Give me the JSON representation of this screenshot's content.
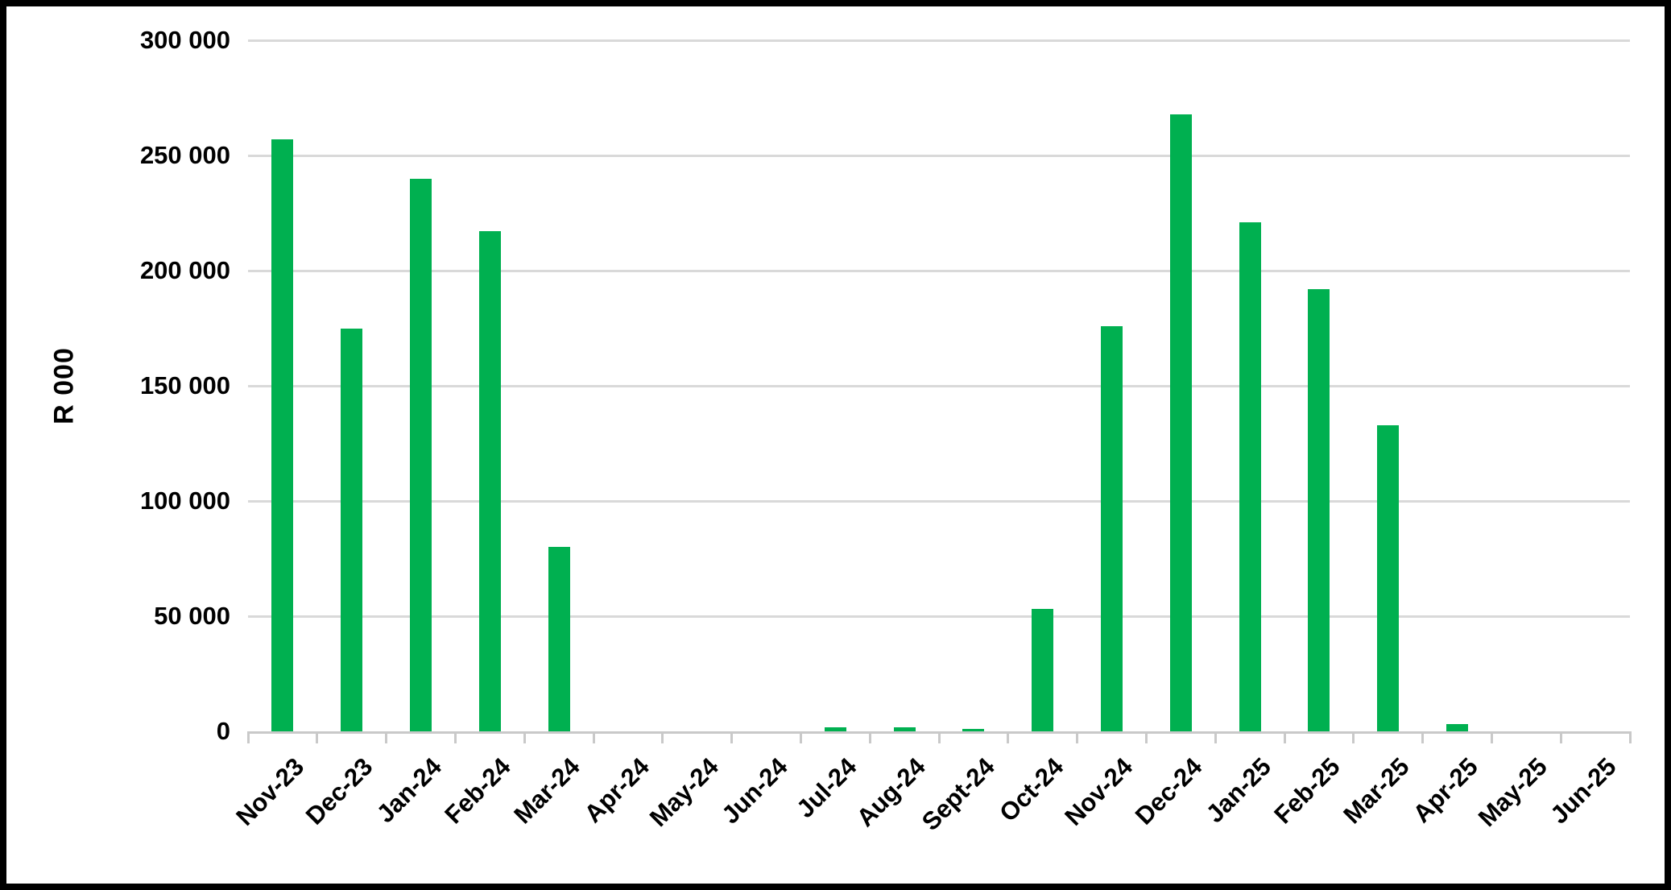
{
  "chart_data": {
    "type": "bar",
    "title": "",
    "xlabel": "",
    "ylabel": "R 000",
    "categories": [
      "Nov-23",
      "Dec-23",
      "Jan-24",
      "Feb-24",
      "Mar-24",
      "Apr-24",
      "May-24",
      "Jun-24",
      "Jul-24",
      "Aug-24",
      "Sept-24",
      "Oct-24",
      "Nov-24",
      "Dec-24",
      "Jan-25",
      "Feb-25",
      "Mar-25",
      "Apr-25",
      "May-25",
      "Jun-25"
    ],
    "values": [
      257000,
      175000,
      240000,
      217000,
      80000,
      0,
      0,
      0,
      1700,
      1700,
      1200,
      53000,
      176000,
      268000,
      221000,
      192000,
      133000,
      3100,
      0,
      0
    ],
    "ylim": [
      0,
      300000
    ],
    "ytick_values": [
      0,
      50000,
      100000,
      150000,
      200000,
      250000,
      300000
    ],
    "ytick_labels": [
      "0",
      "50 000",
      "100 000",
      "150 000",
      "200 000",
      "250 000",
      "300 000"
    ],
    "grid": true,
    "legend": "none",
    "x_label_rotation_deg": 45,
    "bar_color": "#00B050",
    "gridline_color": "#D9D9D9",
    "axis_line_color": "#C9C9C9",
    "text_color": "#000000",
    "background_color": "#FFFFFF",
    "border_color": "#000000"
  }
}
